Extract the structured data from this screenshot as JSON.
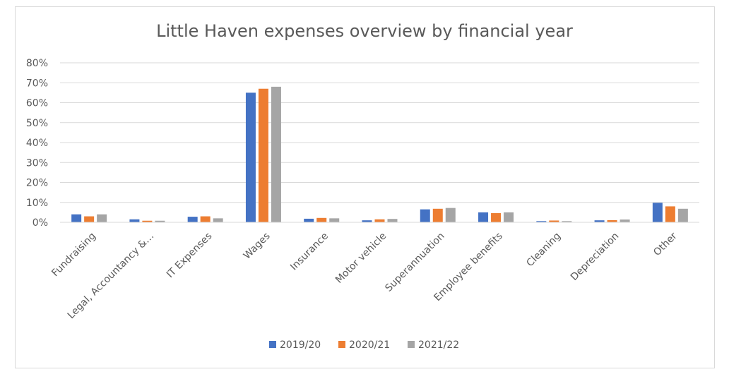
{
  "chart_data": {
    "type": "bar",
    "title": "Little Haven expenses overview by financial year",
    "xlabel": "",
    "ylabel": "",
    "ylim": [
      0,
      80
    ],
    "yticks": [
      "0%",
      "10%",
      "20%",
      "30%",
      "40%",
      "50%",
      "60%",
      "70%",
      "80%"
    ],
    "grid": true,
    "legend_position": "bottom",
    "categories": [
      "Fundraising",
      "Legal, Accountancy &…",
      "IT Expenses",
      "Wages",
      "Insurance",
      "Motor vehicle",
      "Superannuation",
      "Employee benefits",
      "Cleaning",
      "Depreciation",
      "Other"
    ],
    "series": [
      {
        "name": "2019/20",
        "color": "#4472c4",
        "values": [
          4.0,
          1.5,
          2.8,
          65.0,
          1.8,
          1.0,
          6.5,
          5.0,
          0.6,
          1.0,
          9.8
        ]
      },
      {
        "name": "2020/21",
        "color": "#ed7d31",
        "values": [
          3.0,
          0.8,
          3.0,
          67.0,
          2.2,
          1.5,
          6.8,
          4.6,
          0.9,
          1.1,
          8.0
        ]
      },
      {
        "name": "2021/22",
        "color": "#a5a5a5",
        "values": [
          4.0,
          0.8,
          2.0,
          68.0,
          2.0,
          1.7,
          7.2,
          5.0,
          0.6,
          1.4,
          6.8
        ]
      }
    ]
  }
}
